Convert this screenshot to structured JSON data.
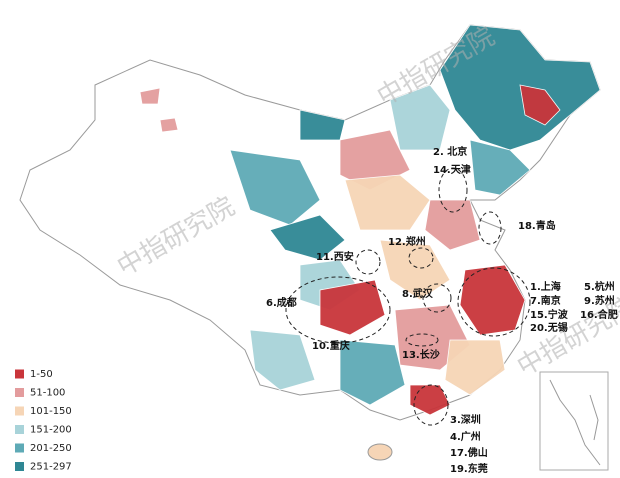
{
  "legend": [
    {
      "label": "1-50",
      "color": "#c9353b"
    },
    {
      "label": "51-100",
      "color": "#e39c9d"
    },
    {
      "label": "101-150",
      "color": "#f6d5b6"
    },
    {
      "label": "151-200",
      "color": "#a8d3d9"
    },
    {
      "label": "201-250",
      "color": "#5eaab6"
    },
    {
      "label": "251-297",
      "color": "#2f8794"
    }
  ],
  "watermarks": [
    "中指研究院",
    "中指研究院",
    "中指研究院"
  ],
  "cities": [
    "2. 北京",
    "14.天津",
    "18.青岛",
    "12.郑州",
    "11.西安",
    "1.上海",
    "5.杭州",
    "7.南京",
    "9.苏州",
    "15.宁波",
    "16.合肥",
    "20.无锡",
    "6.成都",
    "8.武汉",
    "10.重庆",
    "13.长沙",
    "3.深圳",
    "4.广州",
    "17.佛山",
    "19.东莞"
  ]
}
